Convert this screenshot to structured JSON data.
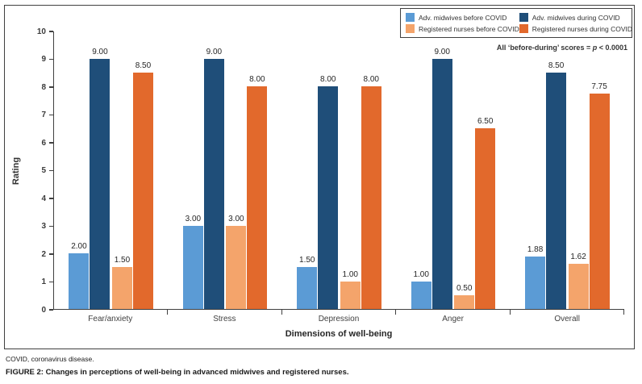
{
  "chart_data": {
    "type": "bar",
    "title": "",
    "xlabel": "Dimensions of well-being",
    "ylabel": "Rating",
    "ylim": [
      0,
      10
    ],
    "ytick_step": 1,
    "grid": false,
    "legend_position": "top-right",
    "categories": [
      "Fear/anxiety",
      "Stress",
      "Depression",
      "Anger",
      "Overall"
    ],
    "series": [
      {
        "name": "Adv. midwives before COVID",
        "color": "#5B9BD5",
        "values": [
          2.0,
          3.0,
          1.5,
          1.0,
          1.88
        ]
      },
      {
        "name": "Adv. midwives during COVID",
        "color": "#1F4E79",
        "values": [
          9.0,
          9.0,
          8.0,
          9.0,
          8.5
        ]
      },
      {
        "name": "Registered nurses before COVID",
        "color": "#F4A46B",
        "values": [
          1.5,
          3.0,
          1.0,
          0.5,
          1.62
        ]
      },
      {
        "name": "Registered nurses during COVID",
        "color": "#E2692C",
        "values": [
          8.5,
          8.0,
          8.0,
          6.5,
          7.75
        ]
      }
    ]
  },
  "annotation": {
    "prefix": "All ‘before-during’ scores = ",
    "p": "p",
    "suffix": " < 0.0001"
  },
  "captions": {
    "abbreviation": "COVID, coronavirus disease.",
    "figure_label": "FIGURE 2:",
    "figure_text": " Changes in perceptions of well-being in advanced midwives and registered nurses."
  },
  "colors": {
    "axis": "#404040",
    "text": "#333333",
    "frame_border": "#404040"
  }
}
